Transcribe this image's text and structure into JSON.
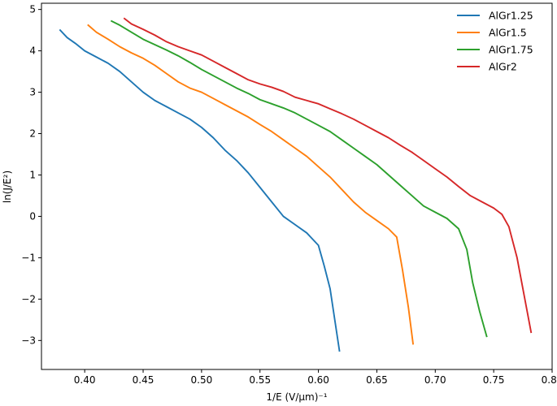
{
  "chart_data": {
    "type": "line",
    "title": "",
    "xlabel": "1/E (V/μm)⁻¹",
    "ylabel": "ln(J/E²)",
    "xlim": [
      0.363,
      0.8
    ],
    "ylim": [
      -3.7,
      5.15
    ],
    "xticks": [
      0.4,
      0.45,
      0.5,
      0.55,
      0.6,
      0.65,
      0.7,
      0.75,
      0.8
    ],
    "xtick_labels": [
      "0.40",
      "0.45",
      "0.50",
      "0.55",
      "0.60",
      "0.65",
      "0.70",
      "0.75",
      "0.80"
    ],
    "yticks": [
      -3,
      -2,
      -1,
      0,
      1,
      2,
      3,
      4,
      5
    ],
    "ytick_labels": [
      "−3",
      "−2",
      "−1",
      "0",
      "1",
      "2",
      "3",
      "4",
      "5"
    ],
    "grid": false,
    "legend_position": "top-right",
    "series": [
      {
        "name": "AlGr1.25",
        "color": "#1f77b4",
        "x": [
          0.379,
          0.385,
          0.392,
          0.4,
          0.41,
          0.42,
          0.43,
          0.44,
          0.45,
          0.46,
          0.47,
          0.48,
          0.49,
          0.5,
          0.51,
          0.52,
          0.53,
          0.54,
          0.55,
          0.56,
          0.57,
          0.58,
          0.59,
          0.6,
          0.605,
          0.61,
          0.614,
          0.618
        ],
        "y": [
          4.5,
          4.32,
          4.18,
          4.0,
          3.85,
          3.7,
          3.5,
          3.25,
          3.0,
          2.8,
          2.65,
          2.5,
          2.35,
          2.15,
          1.9,
          1.6,
          1.35,
          1.05,
          0.7,
          0.35,
          0.0,
          -0.2,
          -0.4,
          -0.7,
          -1.2,
          -1.75,
          -2.5,
          -3.25
        ]
      },
      {
        "name": "AlGr1.5",
        "color": "#ff7f0e",
        "x": [
          0.403,
          0.41,
          0.42,
          0.43,
          0.44,
          0.45,
          0.46,
          0.47,
          0.48,
          0.49,
          0.5,
          0.51,
          0.52,
          0.53,
          0.54,
          0.55,
          0.56,
          0.57,
          0.58,
          0.59,
          0.6,
          0.61,
          0.62,
          0.63,
          0.64,
          0.65,
          0.66,
          0.667,
          0.672,
          0.677,
          0.681
        ],
        "y": [
          4.62,
          4.45,
          4.28,
          4.1,
          3.95,
          3.82,
          3.65,
          3.45,
          3.25,
          3.1,
          3.0,
          2.85,
          2.7,
          2.55,
          2.4,
          2.22,
          2.05,
          1.85,
          1.65,
          1.45,
          1.2,
          0.95,
          0.65,
          0.35,
          0.1,
          -0.1,
          -0.3,
          -0.5,
          -1.3,
          -2.2,
          -3.08
        ]
      },
      {
        "name": "AlGr1.75",
        "color": "#2ca02c",
        "x": [
          0.423,
          0.43,
          0.44,
          0.45,
          0.46,
          0.47,
          0.48,
          0.49,
          0.5,
          0.51,
          0.52,
          0.53,
          0.54,
          0.55,
          0.56,
          0.57,
          0.58,
          0.59,
          0.6,
          0.61,
          0.62,
          0.63,
          0.64,
          0.65,
          0.66,
          0.67,
          0.68,
          0.69,
          0.7,
          0.71,
          0.72,
          0.727,
          0.732,
          0.738,
          0.744
        ],
        "y": [
          4.72,
          4.62,
          4.45,
          4.28,
          4.15,
          4.02,
          3.88,
          3.72,
          3.55,
          3.4,
          3.25,
          3.1,
          2.97,
          2.82,
          2.72,
          2.62,
          2.5,
          2.35,
          2.2,
          2.05,
          1.85,
          1.65,
          1.45,
          1.25,
          1.0,
          0.75,
          0.5,
          0.25,
          0.1,
          -0.05,
          -0.3,
          -0.8,
          -1.6,
          -2.3,
          -2.9
        ]
      },
      {
        "name": "AlGr2",
        "color": "#d62728",
        "x": [
          0.434,
          0.44,
          0.45,
          0.46,
          0.47,
          0.48,
          0.49,
          0.5,
          0.51,
          0.52,
          0.53,
          0.54,
          0.55,
          0.56,
          0.57,
          0.58,
          0.59,
          0.6,
          0.61,
          0.62,
          0.63,
          0.64,
          0.65,
          0.66,
          0.67,
          0.68,
          0.69,
          0.7,
          0.71,
          0.72,
          0.73,
          0.74,
          0.75,
          0.757,
          0.763,
          0.77,
          0.776,
          0.782
        ],
        "y": [
          4.78,
          4.65,
          4.52,
          4.38,
          4.22,
          4.1,
          4.0,
          3.9,
          3.75,
          3.6,
          3.45,
          3.3,
          3.2,
          3.12,
          3.02,
          2.88,
          2.8,
          2.72,
          2.6,
          2.48,
          2.35,
          2.2,
          2.05,
          1.9,
          1.72,
          1.55,
          1.35,
          1.15,
          0.95,
          0.72,
          0.5,
          0.35,
          0.2,
          0.05,
          -0.25,
          -1.0,
          -1.9,
          -2.8
        ]
      }
    ]
  }
}
